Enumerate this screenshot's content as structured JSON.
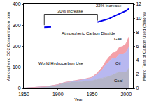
{
  "chart_data": {
    "type": "line",
    "x_label": "Year",
    "y_label": "Atmospheric CO2 Concentration ppm",
    "y2_label": "Metric Tons of Carbon Used (Billions)",
    "x": [
      1850,
      1860,
      1870,
      1880,
      1890,
      1900,
      1910,
      1920,
      1930,
      1940,
      1950,
      1958,
      1960,
      1965,
      1970,
      1975,
      1980,
      1985,
      1990,
      1995,
      2000,
      2004
    ],
    "xlim": [
      1850,
      2010
    ],
    "xticks": [
      1850,
      1900,
      1950,
      2000
    ],
    "ylim": [
      0,
      400
    ],
    "yticks": [
      0,
      100,
      200,
      300,
      400
    ],
    "y2lim": [
      0,
      12
    ],
    "y2ticks": [
      0,
      2,
      4,
      6,
      8,
      10,
      12
    ],
    "stacked": true,
    "series": [
      {
        "name": "Atmospheric Carbon Dioxide",
        "type": "line",
        "color": "#0000ee",
        "values": [
          null,
          null,
          null,
          290,
          292,
          null,
          null,
          null,
          null,
          null,
          null,
          315,
          317,
          320,
          326,
          331,
          339,
          346,
          354,
          361,
          369,
          378
        ]
      },
      {
        "name": "Coal",
        "type": "area",
        "axis": "y2",
        "color": "#b4b4c8",
        "values": [
          0.05,
          0.09,
          0.14,
          0.23,
          0.36,
          0.51,
          0.8,
          0.9,
          0.9,
          1.05,
          1.07,
          1.3,
          1.4,
          1.45,
          1.55,
          1.7,
          1.9,
          2.1,
          2.35,
          2.3,
          2.3,
          2.9
        ]
      },
      {
        "name": "Oil",
        "type": "area",
        "axis": "y2",
        "color": "#b8b8f0",
        "values": [
          0,
          0,
          0,
          0.01,
          0.01,
          0.02,
          0.04,
          0.1,
          0.2,
          0.24,
          0.42,
          0.7,
          0.85,
          1.2,
          1.8,
          2.1,
          2.4,
          2.2,
          2.5,
          2.6,
          2.8,
          3.0
        ]
      },
      {
        "name": "Gas",
        "type": "area",
        "axis": "y2",
        "color": "#f4a0a8",
        "values": [
          0,
          0,
          0,
          0,
          0,
          0.01,
          0.01,
          0.02,
          0.04,
          0.06,
          0.1,
          0.2,
          0.23,
          0.35,
          0.5,
          0.6,
          0.75,
          0.85,
          1.0,
          1.1,
          1.3,
          1.45
        ]
      }
    ],
    "annotations": [
      "30% Increase",
      "22% Increase",
      "Atmospheric Carbon Dioxide",
      "World Hydrocarbon Use",
      "Gas",
      "Oil",
      "Coal"
    ]
  }
}
